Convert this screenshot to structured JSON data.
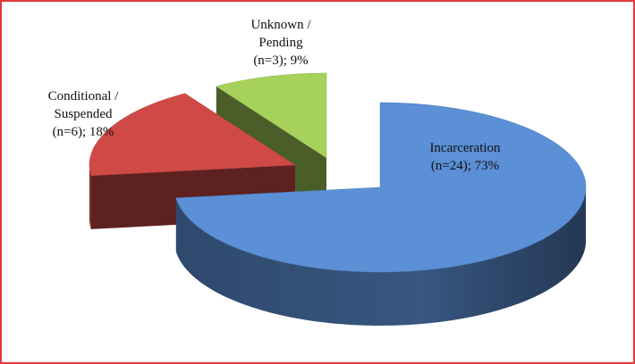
{
  "chart_data": {
    "type": "pie3d",
    "categories": [
      "Incarceration",
      "Conditional / Suspended",
      "Unknown / Pending"
    ],
    "values": [
      73,
      18,
      9
    ],
    "value_labels": [
      "(n=24); 73%",
      "(n=6); 18%",
      "(n=3); 9%"
    ],
    "colors": [
      "#5b8fd6",
      "#cf4a46",
      "#a6d15a"
    ]
  }
}
